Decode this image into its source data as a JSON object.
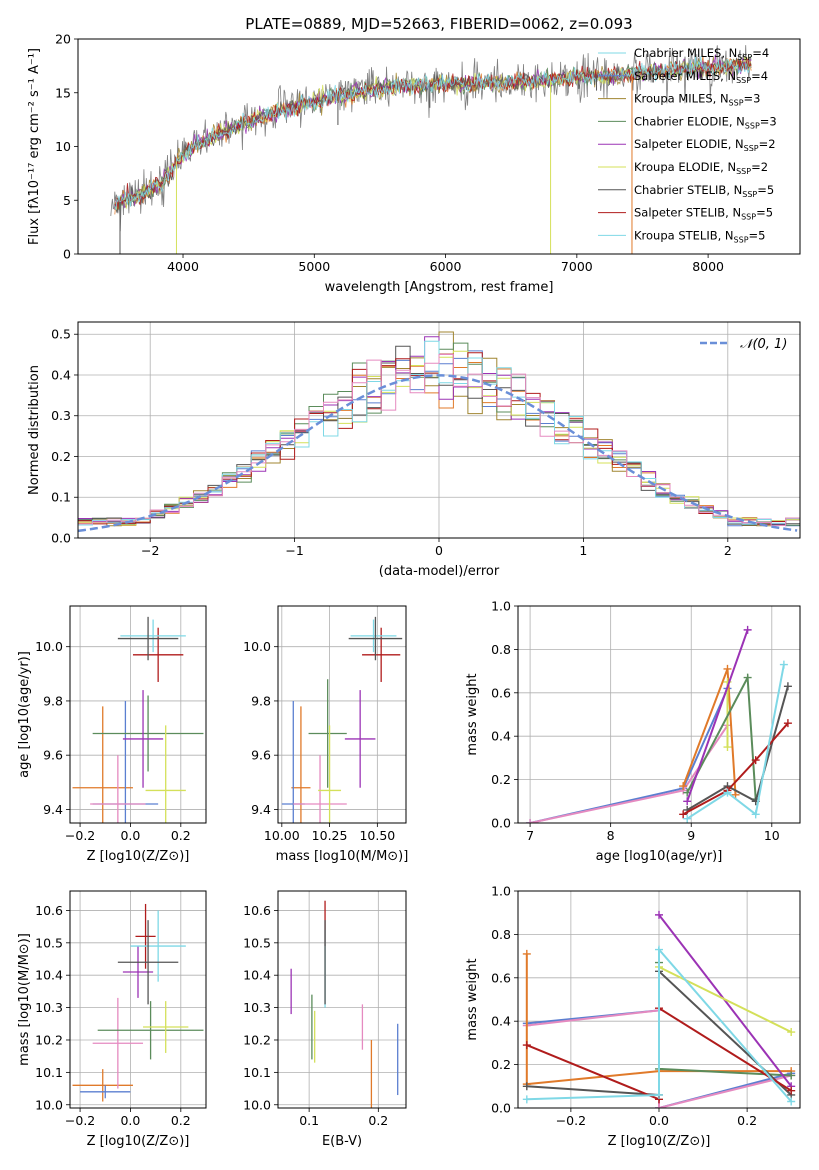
{
  "colors": {
    "c1": "#5b7fd0",
    "c2": "#e07a2a",
    "c3": "#a08530",
    "c4": "#5b8c5b",
    "c5": "#9b33b5",
    "c6": "#d4e05a",
    "c7": "#555555",
    "c8": "#b01c1c",
    "c9": "#7fd8e6",
    "c10": "#e58ac0",
    "norm": "#6a8fd8"
  },
  "chart_data": [
    {
      "id": "spectrum",
      "type": "line",
      "title": "PLATE=0889, MJD=52663, FIBERID=0062, z=0.093",
      "xlabel": "wavelength [Angstrom, rest frame]",
      "ylabel": "Flux [fλ10⁻¹⁷ erg cm⁻² s⁻¹ A⁻¹]",
      "xlim": [
        3200,
        8700
      ],
      "ylim": [
        0,
        20
      ],
      "xticks": [
        4000,
        5000,
        6000,
        7000,
        8000
      ],
      "yticks": [
        0,
        5,
        10,
        15,
        20
      ],
      "grid": false,
      "legend_position": "top-right",
      "legend": [
        {
          "label": "Chabrier MILES, N",
          "sub": "SSP",
          "eq": "=4",
          "color": "c9"
        },
        {
          "label": "Salpeter MILES, N",
          "sub": "SSP",
          "eq": "=4",
          "color": "c1"
        },
        {
          "label": "Kroupa MILES, N",
          "sub": "SSP",
          "eq": "=3",
          "color": "c3"
        },
        {
          "label": "Chabrier ELODIE, N",
          "sub": "SSP",
          "eq": "=3",
          "color": "c4"
        },
        {
          "label": "Salpeter ELODIE, N",
          "sub": "SSP",
          "eq": "=2",
          "color": "c5"
        },
        {
          "label": "Kroupa ELODIE, N",
          "sub": "SSP",
          "eq": "=2",
          "color": "c6"
        },
        {
          "label": "Chabrier STELIB, N",
          "sub": "SSP",
          "eq": "=5",
          "color": "c7"
        },
        {
          "label": "Salpeter STELIB, N",
          "sub": "SSP",
          "eq": "=5",
          "color": "c8"
        },
        {
          "label": "Kroupa STELIB, N",
          "sub": "SSP",
          "eq": "=5",
          "color": "c9"
        }
      ],
      "continuum": [
        [
          3400,
          4.2
        ],
        [
          3550,
          5.0
        ],
        [
          3700,
          5.6
        ],
        [
          3850,
          6.8
        ],
        [
          3950,
          8.6
        ],
        [
          4100,
          10.2
        ],
        [
          4300,
          11.3
        ],
        [
          4500,
          12.3
        ],
        [
          4700,
          13.2
        ],
        [
          4900,
          13.8
        ],
        [
          5100,
          14.4
        ],
        [
          5300,
          15.0
        ],
        [
          5500,
          15.4
        ],
        [
          5700,
          15.6
        ],
        [
          5900,
          15.8
        ],
        [
          6100,
          15.8
        ],
        [
          6300,
          15.9
        ],
        [
          6500,
          16.0
        ],
        [
          6700,
          16.1
        ],
        [
          6900,
          16.3
        ],
        [
          7100,
          16.6
        ],
        [
          7300,
          16.6
        ],
        [
          7500,
          16.9
        ],
        [
          7700,
          17.0
        ],
        [
          7900,
          17.3
        ],
        [
          8100,
          17.4
        ],
        [
          8300,
          17.6
        ]
      ],
      "dips": [
        {
          "x": 3520,
          "y": 0
        },
        {
          "x": 3950,
          "y": 0,
          "color": "c6"
        },
        {
          "x": 6800,
          "y": 0,
          "color": "c6"
        },
        {
          "x": 7420,
          "y": 0,
          "color": "c2"
        },
        {
          "x": 7150,
          "y": 15.2
        },
        {
          "x": 5180,
          "y": 12.0
        },
        {
          "x": 5880,
          "y": 13.6
        }
      ]
    },
    {
      "id": "residuals",
      "type": "step",
      "xlabel": "(data-model)/error",
      "ylabel": "Normed distribution",
      "xlim": [
        -2.5,
        2.5
      ],
      "ylim": [
        0,
        0.53
      ],
      "xticks": [
        -2,
        -1,
        0,
        1,
        2
      ],
      "yticks": [
        0.0,
        0.1,
        0.2,
        0.3,
        0.4,
        0.5
      ],
      "grid": true,
      "legend_position": "top-right",
      "legend": [
        {
          "label": "𝒩(0, 1)",
          "color": "norm",
          "style": "dashed"
        }
      ],
      "bin_width": 0.1,
      "series_colors": [
        "c1",
        "c2",
        "c3",
        "c4",
        "c5",
        "c6",
        "c7",
        "c8",
        "c9",
        "c10"
      ]
    },
    {
      "id": "age_vs_Z",
      "type": "errorbar",
      "xlabel": "Z [log10(Z/Z⊙)]",
      "ylabel": "age  [log10(age/yr)]",
      "xlim": [
        -0.24,
        0.3
      ],
      "ylim": [
        9.35,
        10.15
      ],
      "xticks": [
        -0.2,
        0.0,
        0.2
      ],
      "yticks": [
        9.4,
        9.6,
        9.8,
        10.0
      ],
      "grid": true,
      "points": [
        {
          "color": "c2",
          "x": -0.11,
          "xerr": 0.12,
          "y": 9.48,
          "yerr": 0.3
        },
        {
          "color": "c1",
          "x": -0.02,
          "xerr": 0.13,
          "y": 9.42,
          "yerr": 0.38
        },
        {
          "color": "c10",
          "x": -0.05,
          "xerr": 0.11,
          "y": 9.42,
          "yerr": 0.18
        },
        {
          "color": "c4",
          "x": 0.07,
          "xerr": 0.22,
          "y": 9.68,
          "yerr": 0.14
        },
        {
          "color": "c5",
          "x": 0.05,
          "xerr": 0.08,
          "y": 9.66,
          "yerr": 0.18
        },
        {
          "color": "c6",
          "x": 0.14,
          "xerr": 0.08,
          "y": 9.47,
          "yerr": 0.24
        },
        {
          "color": "c8",
          "x": 0.11,
          "xerr": 0.1,
          "y": 9.97,
          "yerr": 0.1
        },
        {
          "color": "c9",
          "x": 0.09,
          "xerr": 0.13,
          "y": 10.04,
          "yerr": 0.06
        },
        {
          "color": "c7",
          "x": 0.07,
          "xerr": 0.12,
          "y": 10.03,
          "yerr": 0.08
        }
      ]
    },
    {
      "id": "age_vs_mass",
      "type": "errorbar",
      "xlabel": "mass [log10(M/M⊙)]",
      "ylabel": "",
      "xlim": [
        9.98,
        10.65
      ],
      "ylim": [
        9.35,
        10.15
      ],
      "xticks": [
        10.0,
        10.25,
        10.5
      ],
      "yticks": [
        9.4,
        9.6,
        9.8,
        10.0
      ],
      "grid": true,
      "points": [
        {
          "color": "c2",
          "x": 10.1,
          "xerr": 0.05,
          "y": 9.48,
          "yerr": 0.3
        },
        {
          "color": "c1",
          "x": 10.06,
          "xerr": 0.06,
          "y": 9.42,
          "yerr": 0.38
        },
        {
          "color": "c10",
          "x": 10.2,
          "xerr": 0.14,
          "y": 9.42,
          "yerr": 0.18
        },
        {
          "color": "c4",
          "x": 10.24,
          "xerr": 0.1,
          "y": 9.68,
          "yerr": 0.2
        },
        {
          "color": "c5",
          "x": 10.41,
          "xerr": 0.08,
          "y": 9.66,
          "yerr": 0.18
        },
        {
          "color": "c6",
          "x": 10.25,
          "xerr": 0.06,
          "y": 9.47,
          "yerr": 0.24
        },
        {
          "color": "c8",
          "x": 10.52,
          "xerr": 0.1,
          "y": 9.97,
          "yerr": 0.1
        },
        {
          "color": "c9",
          "x": 10.48,
          "xerr": 0.12,
          "y": 10.04,
          "yerr": 0.06
        },
        {
          "color": "c7",
          "x": 10.49,
          "xerr": 0.14,
          "y": 10.03,
          "yerr": 0.08
        }
      ]
    },
    {
      "id": "weight_vs_age",
      "type": "line",
      "xlabel": "age  [log10(age/yr)]",
      "ylabel": "mass weight",
      "xlim": [
        6.85,
        10.35
      ],
      "ylim": [
        0,
        1
      ],
      "xticks": [
        7,
        8,
        9,
        10
      ],
      "yticks": [
        0.0,
        0.2,
        0.4,
        0.6,
        0.8,
        1.0
      ],
      "grid": true,
      "series": [
        {
          "color": "c1",
          "points": [
            [
              7.0,
              0.0
            ],
            [
              8.9,
              0.16
            ],
            [
              9.45,
              0.62
            ]
          ]
        },
        {
          "color": "c10",
          "points": [
            [
              7.0,
              0.0
            ],
            [
              8.9,
              0.15
            ],
            [
              9.45,
              0.45
            ]
          ]
        },
        {
          "color": "c2",
          "points": [
            [
              8.9,
              0.17
            ],
            [
              9.45,
              0.71
            ],
            [
              9.55,
              0.13
            ]
          ]
        },
        {
          "color": "c6",
          "points": [
            [
              9.45,
              0.65
            ],
            [
              9.45,
              0.35
            ]
          ]
        },
        {
          "color": "c4",
          "points": [
            [
              8.95,
              0.14
            ],
            [
              9.7,
              0.67
            ],
            [
              9.8,
              0.11
            ]
          ]
        },
        {
          "color": "c5",
          "points": [
            [
              8.95,
              0.1
            ],
            [
              9.7,
              0.89
            ]
          ]
        },
        {
          "color": "c7",
          "points": [
            [
              8.95,
              0.06
            ],
            [
              9.45,
              0.17
            ],
            [
              9.8,
              0.1
            ],
            [
              10.2,
              0.63
            ]
          ]
        },
        {
          "color": "c8",
          "points": [
            [
              8.9,
              0.04
            ],
            [
              9.45,
              0.15
            ],
            [
              9.8,
              0.29
            ],
            [
              10.2,
              0.46
            ]
          ]
        },
        {
          "color": "c9",
          "points": [
            [
              8.95,
              0.02
            ],
            [
              9.45,
              0.14
            ],
            [
              9.8,
              0.04
            ],
            [
              10.15,
              0.73
            ]
          ]
        }
      ]
    },
    {
      "id": "mass_vs_Z",
      "type": "errorbar",
      "xlabel": "Z [log10(Z/Z⊙)]",
      "ylabel": "mass [log10(M/M⊙)]",
      "xlim": [
        -0.24,
        0.3
      ],
      "ylim": [
        9.99,
        10.66
      ],
      "xticks": [
        -0.2,
        0.0,
        0.2
      ],
      "yticks": [
        10.0,
        10.1,
        10.2,
        10.3,
        10.4,
        10.5,
        10.6
      ],
      "grid": true,
      "points": [
        {
          "color": "c2",
          "x": -0.11,
          "xerr": 0.12,
          "y": 10.06,
          "yerr": 0.05
        },
        {
          "color": "c1",
          "x": -0.1,
          "xerr": 0.1,
          "y": 10.04,
          "yerr": 0.02
        },
        {
          "color": "c10",
          "x": -0.05,
          "xerr": 0.1,
          "y": 10.19,
          "yerr": 0.14
        },
        {
          "color": "c4",
          "x": 0.08,
          "xerr": 0.21,
          "y": 10.23,
          "yerr": 0.09
        },
        {
          "color": "c5",
          "x": 0.03,
          "xerr": 0.06,
          "y": 10.41,
          "yerr": 0.08
        },
        {
          "color": "c6",
          "x": 0.14,
          "xerr": 0.09,
          "y": 10.24,
          "yerr": 0.08
        },
        {
          "color": "c8",
          "x": 0.06,
          "xerr": 0.04,
          "y": 10.52,
          "yerr": 0.1
        },
        {
          "color": "c9",
          "x": 0.11,
          "xerr": 0.11,
          "y": 10.49,
          "yerr": 0.11
        },
        {
          "color": "c7",
          "x": 0.07,
          "xerr": 0.12,
          "y": 10.44,
          "yerr": 0.13
        }
      ]
    },
    {
      "id": "mass_vs_ebv",
      "type": "errorbar",
      "xlabel": "E(B-V)",
      "ylabel": "",
      "xlim": [
        0.055,
        0.24
      ],
      "ylim": [
        9.99,
        10.66
      ],
      "xticks": [
        0.1,
        0.2
      ],
      "yticks": [
        10.0,
        10.1,
        10.2,
        10.3,
        10.4,
        10.5,
        10.6
      ],
      "grid": true,
      "points": [
        {
          "color": "c2",
          "x": 0.19,
          "y": 10.06,
          "yerr": 0.14
        },
        {
          "color": "c1",
          "x": 0.228,
          "y": 10.14,
          "yerr": 0.11
        },
        {
          "color": "c10",
          "x": 0.177,
          "y": 10.24,
          "yerr": 0.07
        },
        {
          "color": "c4",
          "x": 0.104,
          "y": 10.24,
          "yerr": 0.1
        },
        {
          "color": "c5",
          "x": 0.074,
          "y": 10.35,
          "yerr": 0.07
        },
        {
          "color": "c6",
          "x": 0.108,
          "y": 10.21,
          "yerr": 0.08
        },
        {
          "color": "c8",
          "x": 0.123,
          "y": 10.56,
          "yerr": 0.07
        },
        {
          "color": "c9",
          "x": 0.123,
          "y": 10.42,
          "yerr": 0.12
        },
        {
          "color": "c7",
          "x": 0.123,
          "y": 10.44,
          "yerr": 0.13
        }
      ]
    },
    {
      "id": "weight_vs_Z",
      "type": "line",
      "xlabel": "Z [log10(Z/Z⊙)]",
      "ylabel": "mass weight",
      "xlim": [
        -0.32,
        0.32
      ],
      "ylim": [
        0,
        1
      ],
      "xticks": [
        -0.2,
        0.0,
        0.2
      ],
      "yticks": [
        0.0,
        0.2,
        0.4,
        0.6,
        0.8,
        1.0
      ],
      "grid": true,
      "series": [
        {
          "color": "c1",
          "points": [
            [
              -0.3,
              0.39
            ],
            [
              0.0,
              0.45
            ],
            [
              0.0,
              0.0
            ],
            [
              0.3,
              0.16
            ]
          ]
        },
        {
          "color": "c10",
          "points": [
            [
              -0.3,
              0.38
            ],
            [
              0.0,
              0.45
            ],
            [
              0.0,
              0.0
            ],
            [
              0.3,
              0.15
            ]
          ]
        },
        {
          "color": "c2",
          "points": [
            [
              -0.3,
              0.71
            ],
            [
              -0.3,
              0.11
            ],
            [
              0.0,
              0.17
            ],
            [
              0.3,
              0.17
            ]
          ]
        },
        {
          "color": "c4",
          "points": [
            [
              0.0,
              0.67
            ],
            [
              0.0,
              0.18
            ],
            [
              0.3,
              0.15
            ]
          ]
        },
        {
          "color": "c5",
          "points": [
            [
              0.0,
              0.89
            ],
            [
              0.3,
              0.1
            ]
          ]
        },
        {
          "color": "c6",
          "points": [
            [
              0.0,
              0.65
            ],
            [
              0.3,
              0.35
            ]
          ]
        },
        {
          "color": "c7",
          "points": [
            [
              -0.3,
              0.1
            ],
            [
              0.0,
              0.06
            ],
            [
              0.0,
              0.63
            ],
            [
              0.3,
              0.06
            ]
          ]
        },
        {
          "color": "c8",
          "points": [
            [
              -0.3,
              0.29
            ],
            [
              0.0,
              0.04
            ],
            [
              0.0,
              0.46
            ],
            [
              0.3,
              0.08
            ]
          ]
        },
        {
          "color": "c9",
          "points": [
            [
              -0.3,
              0.04
            ],
            [
              0.0,
              0.06
            ],
            [
              0.0,
              0.73
            ],
            [
              0.3,
              0.03
            ]
          ]
        }
      ]
    }
  ]
}
